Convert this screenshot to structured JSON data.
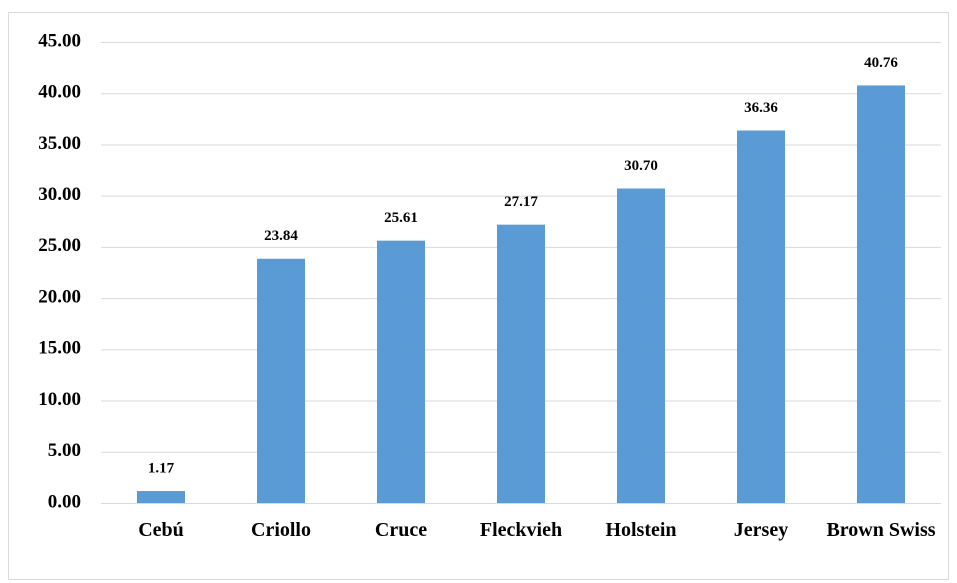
{
  "chart_data": {
    "type": "bar",
    "categories": [
      "Cebú",
      "Criollo",
      "Cruce",
      "Fleckvieh",
      "Holstein",
      "Jersey",
      "Brown Swiss"
    ],
    "values": [
      1.17,
      23.84,
      25.61,
      27.17,
      30.7,
      36.36,
      40.76
    ],
    "value_labels": [
      "1.17",
      "23.84",
      "25.61",
      "27.17",
      "30.70",
      "36.36",
      "40.76"
    ],
    "color": "#5b9bd5",
    "ylim": [
      0,
      45
    ],
    "yticks": [
      {
        "value": 0,
        "label": "0.00"
      },
      {
        "value": 5,
        "label": "5.00"
      },
      {
        "value": 10,
        "label": "10.00"
      },
      {
        "value": 15,
        "label": "15.00"
      },
      {
        "value": 20,
        "label": "20.00"
      },
      {
        "value": 25,
        "label": "25.00"
      },
      {
        "value": 30,
        "label": "30.00"
      },
      {
        "value": 35,
        "label": "35.00"
      },
      {
        "value": 40,
        "label": "40.00"
      },
      {
        "value": 45,
        "label": "45.00"
      }
    ],
    "grid": true
  }
}
